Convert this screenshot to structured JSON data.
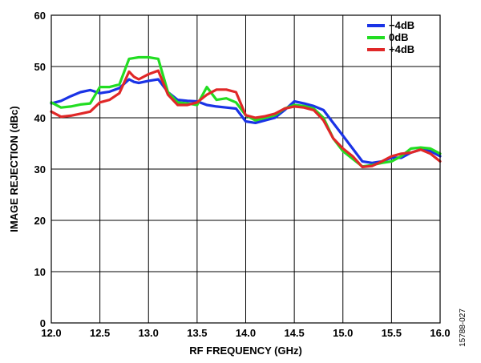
{
  "chart_data": {
    "type": "line",
    "xlabel": "RF FREQUENCY (GHz)",
    "ylabel": "IMAGE REJECTION (dBc)",
    "xlim": [
      12.0,
      16.0
    ],
    "ylim": [
      0,
      60
    ],
    "xticks": [
      "12.0",
      "12.5",
      "13.0",
      "13.5",
      "14.0",
      "14.5",
      "15.0",
      "15.5",
      "16.0"
    ],
    "yticks": [
      "0",
      "10",
      "20",
      "30",
      "40",
      "50",
      "60"
    ],
    "grid": true,
    "legend_position": "top-right",
    "series": [
      {
        "name": "−4dB",
        "color": "#1a33e6",
        "points": [
          [
            12.0,
            42.8
          ],
          [
            12.1,
            43.3
          ],
          [
            12.2,
            44.2
          ],
          [
            12.3,
            45.0
          ],
          [
            12.4,
            45.4
          ],
          [
            12.5,
            44.8
          ],
          [
            12.6,
            45.1
          ],
          [
            12.7,
            45.8
          ],
          [
            12.8,
            47.5
          ],
          [
            12.85,
            47.0
          ],
          [
            12.9,
            46.8
          ],
          [
            13.0,
            47.2
          ],
          [
            13.1,
            47.5
          ],
          [
            13.2,
            45.0
          ],
          [
            13.3,
            43.5
          ],
          [
            13.4,
            43.3
          ],
          [
            13.5,
            43.2
          ],
          [
            13.6,
            42.5
          ],
          [
            13.7,
            42.2
          ],
          [
            13.8,
            42.0
          ],
          [
            13.9,
            41.8
          ],
          [
            14.0,
            39.3
          ],
          [
            14.1,
            39.0
          ],
          [
            14.2,
            39.5
          ],
          [
            14.3,
            40.0
          ],
          [
            14.4,
            41.5
          ],
          [
            14.5,
            43.2
          ],
          [
            14.6,
            42.8
          ],
          [
            14.7,
            42.3
          ],
          [
            14.8,
            41.5
          ],
          [
            14.9,
            39.0
          ],
          [
            15.0,
            36.5
          ],
          [
            15.1,
            34.0
          ],
          [
            15.2,
            31.5
          ],
          [
            15.3,
            31.2
          ],
          [
            15.4,
            31.5
          ],
          [
            15.5,
            32.2
          ],
          [
            15.6,
            32.2
          ],
          [
            15.7,
            33.2
          ],
          [
            15.8,
            33.8
          ],
          [
            15.9,
            33.5
          ],
          [
            16.0,
            32.5
          ]
        ]
      },
      {
        "name": "0dB",
        "color": "#22dd22",
        "points": [
          [
            12.0,
            43.0
          ],
          [
            12.1,
            42.0
          ],
          [
            12.2,
            42.2
          ],
          [
            12.3,
            42.6
          ],
          [
            12.4,
            42.8
          ],
          [
            12.5,
            46.0
          ],
          [
            12.6,
            46.0
          ],
          [
            12.7,
            46.5
          ],
          [
            12.8,
            51.5
          ],
          [
            12.9,
            51.8
          ],
          [
            13.0,
            51.8
          ],
          [
            13.1,
            51.5
          ],
          [
            13.2,
            45.0
          ],
          [
            13.3,
            43.0
          ],
          [
            13.4,
            42.8
          ],
          [
            13.5,
            42.5
          ],
          [
            13.6,
            46.0
          ],
          [
            13.7,
            43.5
          ],
          [
            13.8,
            43.8
          ],
          [
            13.9,
            43.0
          ],
          [
            14.0,
            40.5
          ],
          [
            14.1,
            39.5
          ],
          [
            14.2,
            40.0
          ],
          [
            14.3,
            40.5
          ],
          [
            14.4,
            41.8
          ],
          [
            14.5,
            42.5
          ],
          [
            14.6,
            42.3
          ],
          [
            14.7,
            41.8
          ],
          [
            14.8,
            40.0
          ],
          [
            14.9,
            36.0
          ],
          [
            15.0,
            33.5
          ],
          [
            15.1,
            32.0
          ],
          [
            15.2,
            30.5
          ],
          [
            15.3,
            30.8
          ],
          [
            15.4,
            31.2
          ],
          [
            15.5,
            31.5
          ],
          [
            15.6,
            32.5
          ],
          [
            15.7,
            34.0
          ],
          [
            15.8,
            34.2
          ],
          [
            15.9,
            34.0
          ],
          [
            16.0,
            33.0
          ]
        ]
      },
      {
        "name": "+4dB",
        "color": "#e02828",
        "points": [
          [
            12.0,
            41.2
          ],
          [
            12.1,
            40.2
          ],
          [
            12.2,
            40.4
          ],
          [
            12.3,
            40.8
          ],
          [
            12.4,
            41.2
          ],
          [
            12.5,
            43.0
          ],
          [
            12.6,
            43.5
          ],
          [
            12.7,
            44.8
          ],
          [
            12.8,
            49.0
          ],
          [
            12.85,
            48.0
          ],
          [
            12.9,
            47.5
          ],
          [
            13.0,
            48.5
          ],
          [
            13.1,
            49.2
          ],
          [
            13.2,
            44.5
          ],
          [
            13.3,
            42.5
          ],
          [
            13.4,
            42.5
          ],
          [
            13.5,
            43.0
          ],
          [
            13.6,
            44.5
          ],
          [
            13.7,
            45.5
          ],
          [
            13.8,
            45.5
          ],
          [
            13.9,
            45.0
          ],
          [
            14.0,
            40.5
          ],
          [
            14.1,
            40.0
          ],
          [
            14.2,
            40.3
          ],
          [
            14.3,
            40.8
          ],
          [
            14.4,
            41.8
          ],
          [
            14.5,
            42.2
          ],
          [
            14.6,
            42.0
          ],
          [
            14.7,
            41.5
          ],
          [
            14.8,
            39.5
          ],
          [
            14.9,
            36.0
          ],
          [
            15.0,
            34.0
          ],
          [
            15.1,
            32.5
          ],
          [
            15.2,
            30.4
          ],
          [
            15.3,
            30.6
          ],
          [
            15.4,
            31.5
          ],
          [
            15.5,
            32.5
          ],
          [
            15.6,
            33.0
          ],
          [
            15.7,
            33.2
          ],
          [
            15.8,
            33.8
          ],
          [
            15.9,
            33.0
          ],
          [
            16.0,
            31.5
          ]
        ]
      }
    ]
  },
  "figure_id": "15788-027"
}
